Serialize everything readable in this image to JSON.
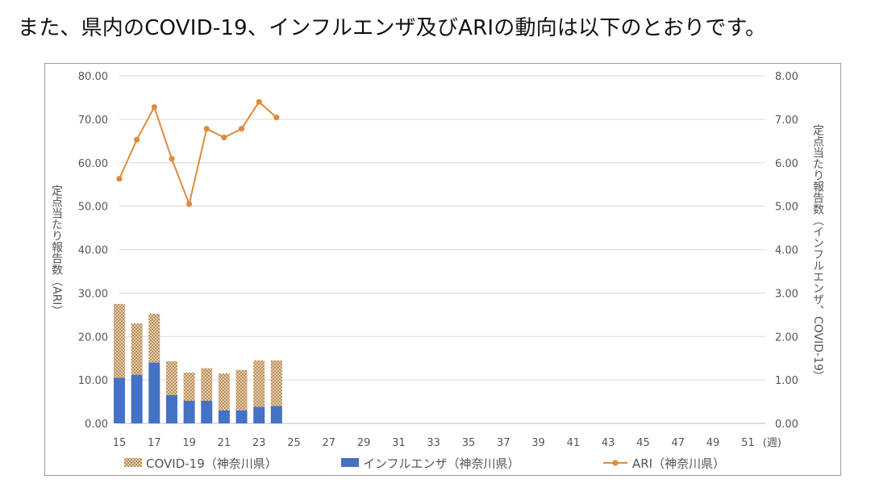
{
  "heading": "また、県内のCOVID-19、インフルエンザ及びARIの動向は以下のとおりです。",
  "chart_data": {
    "type": "bar",
    "x": [
      15,
      16,
      17,
      18,
      19,
      20,
      21,
      22,
      23,
      24
    ],
    "x_ticks": [
      15,
      17,
      19,
      21,
      23,
      25,
      27,
      29,
      31,
      33,
      35,
      37,
      39,
      41,
      43,
      45,
      47,
      49,
      51
    ],
    "x_range": [
      15,
      52
    ],
    "xlabel": "(週)",
    "ylabel_left": "定点当たり報告数（ARI）",
    "ylabel_right": "定点当たり報告数（インフルエンザ、COVID-19）",
    "ylim_left": [
      0,
      80
    ],
    "ylim_right": [
      0,
      8
    ],
    "y_ticks_left": [
      "0.00",
      "10.00",
      "20.00",
      "30.00",
      "40.00",
      "50.00",
      "60.00",
      "70.00",
      "80.00"
    ],
    "y_ticks_right": [
      "0.00",
      "1.00",
      "2.00",
      "3.00",
      "4.00",
      "5.00",
      "6.00",
      "7.00",
      "8.00"
    ],
    "grid": true,
    "legend_position": "bottom",
    "series": [
      {
        "name": "インフルエンザ（神奈川県）",
        "kind": "stacked-bar",
        "axis": "right",
        "color": "#4472c4",
        "values": [
          1.05,
          1.12,
          1.4,
          0.65,
          0.52,
          0.52,
          0.3,
          0.3,
          0.38,
          0.4
        ]
      },
      {
        "name": "COVID-19（神奈川県）",
        "kind": "stacked-bar",
        "axis": "right",
        "color": "#d7b48c",
        "pattern": "crosshatch",
        "values": [
          1.7,
          1.18,
          1.12,
          0.78,
          0.65,
          0.75,
          0.85,
          0.93,
          1.07,
          1.05
        ]
      },
      {
        "name": "ARI（神奈川県）",
        "kind": "line",
        "axis": "left",
        "color": "#e08a3c",
        "values": [
          56.3,
          65.3,
          72.8,
          60.9,
          50.5,
          67.8,
          65.8,
          67.8,
          74.0,
          70.4
        ]
      }
    ]
  }
}
